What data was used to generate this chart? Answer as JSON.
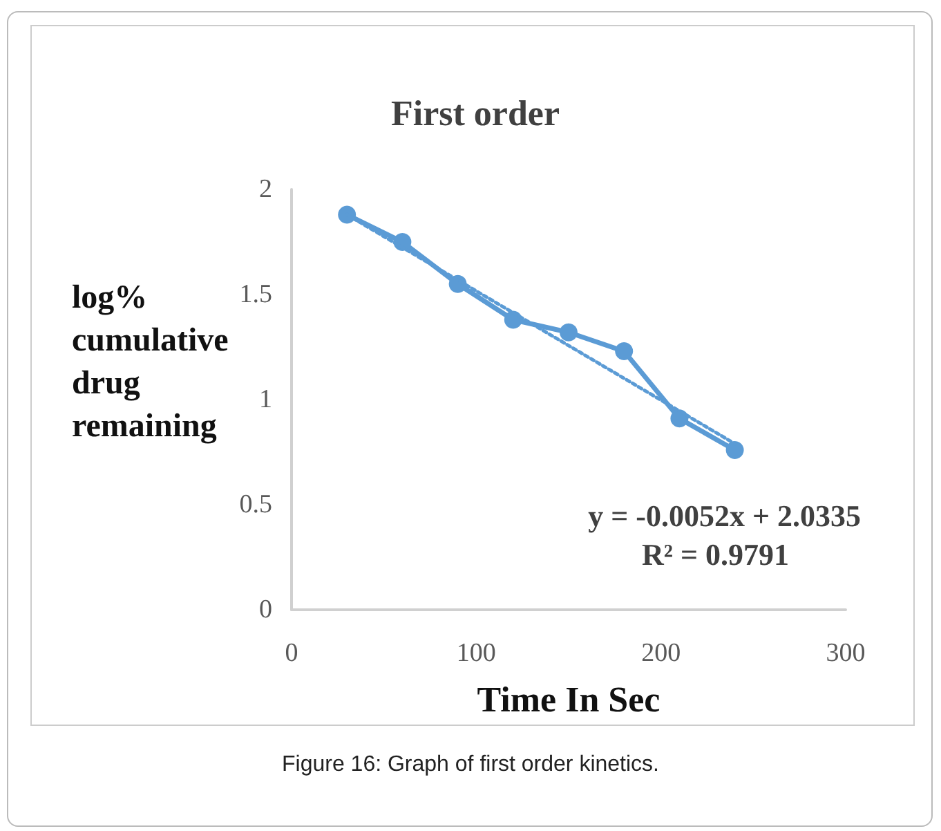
{
  "chart_data": {
    "type": "line",
    "title": "First order",
    "xlabel": "Time In Sec",
    "ylabel": "log% cumulative drug remaining",
    "x": [
      30,
      60,
      90,
      120,
      150,
      180,
      210,
      240
    ],
    "series": [
      {
        "color": "#5b9bd5",
        "values": [
          1.88,
          1.75,
          1.55,
          1.38,
          1.32,
          1.23,
          0.91,
          0.76
        ],
        "marker": "circle",
        "line_style": "solid"
      },
      {
        "type": "line",
        "color": "#5b9bd5",
        "x": [
          30,
          240
        ],
        "values": [
          1.88,
          0.79
        ],
        "marker": "none",
        "line_style": "dotted"
      }
    ],
    "xlim": [
      0,
      300
    ],
    "xticks": [
      0,
      100,
      200,
      300
    ],
    "ylim": [
      0,
      2
    ],
    "yticks": [
      0,
      0.5,
      1,
      1.5,
      2
    ],
    "grid": false,
    "annotations": [
      "y = -0.0052x + 2.0335",
      "R² = 0.9791",
      "Figure 16: Graph of first order kinetics."
    ]
  }
}
